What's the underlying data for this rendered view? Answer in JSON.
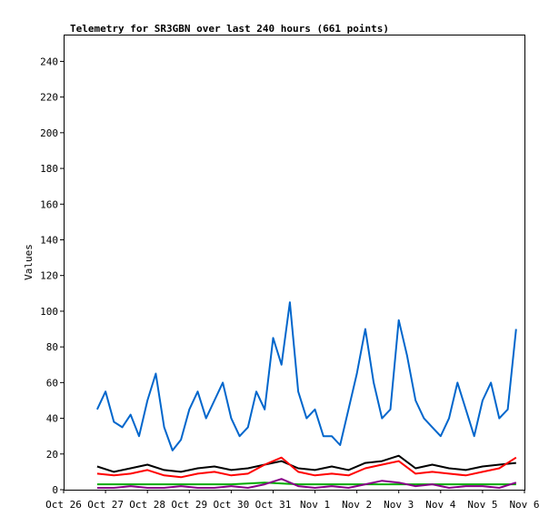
{
  "chart_data": {
    "type": "line",
    "title": "Telemetry for SR3GBN over last 240 hours (661 points)",
    "xlabel": "",
    "ylabel": "Values",
    "xlim": [
      "Oct 26",
      "Nov 6"
    ],
    "ylim": [
      0,
      255
    ],
    "grid": false,
    "legend": "none",
    "x_ticks": [
      "Oct 26",
      "Oct 27",
      "Oct 28",
      "Oct 29",
      "Oct 30",
      "Oct 31",
      "Nov 1",
      "Nov 2",
      "Nov 3",
      "Nov 4",
      "Nov 5",
      "Nov 6"
    ],
    "y_ticks": [
      0,
      20,
      40,
      60,
      80,
      100,
      120,
      140,
      160,
      180,
      200,
      220,
      240
    ],
    "series": [
      {
        "color": "#0066cc",
        "x_days": [
          0.8,
          1.0,
          1.2,
          1.4,
          1.6,
          1.8,
          2.0,
          2.2,
          2.4,
          2.6,
          2.8,
          3.0,
          3.2,
          3.4,
          3.6,
          3.8,
          4.0,
          4.2,
          4.4,
          4.6,
          4.8,
          5.0,
          5.2,
          5.4,
          5.6,
          5.8,
          6.0,
          6.2,
          6.4,
          6.6,
          6.8,
          7.0,
          7.2,
          7.4,
          7.6,
          7.8,
          8.0,
          8.2,
          8.4,
          8.6,
          8.8,
          9.0,
          9.2,
          9.4,
          9.6,
          9.8,
          10.0,
          10.2,
          10.4,
          10.6,
          10.8
        ],
        "values": [
          45,
          55,
          38,
          35,
          42,
          30,
          50,
          65,
          35,
          22,
          28,
          45,
          55,
          40,
          50,
          60,
          40,
          30,
          35,
          55,
          45,
          85,
          70,
          105,
          55,
          40,
          45,
          30,
          30,
          25,
          45,
          65,
          90,
          60,
          40,
          45,
          95,
          75,
          50,
          40,
          35,
          30,
          40,
          60,
          45,
          30,
          50,
          60,
          40,
          45,
          90
        ]
      },
      {
        "color": "#000000",
        "x_days": [
          0.8,
          1.2,
          1.6,
          2.0,
          2.4,
          2.8,
          3.2,
          3.6,
          4.0,
          4.4,
          4.8,
          5.2,
          5.6,
          6.0,
          6.4,
          6.8,
          7.2,
          7.6,
          8.0,
          8.4,
          8.8,
          9.2,
          9.6,
          10.0,
          10.4,
          10.8
        ],
        "values": [
          13,
          10,
          12,
          14,
          11,
          10,
          12,
          13,
          11,
          12,
          14,
          16,
          12,
          11,
          13,
          11,
          15,
          16,
          19,
          12,
          14,
          12,
          11,
          13,
          14,
          15
        ]
      },
      {
        "color": "#ff0000",
        "x_days": [
          0.8,
          1.2,
          1.6,
          2.0,
          2.4,
          2.8,
          3.2,
          3.6,
          4.0,
          4.4,
          4.8,
          5.2,
          5.6,
          6.0,
          6.4,
          6.8,
          7.2,
          7.6,
          8.0,
          8.4,
          8.8,
          9.2,
          9.6,
          10.0,
          10.4,
          10.8
        ],
        "values": [
          9,
          8,
          9,
          11,
          8,
          7,
          9,
          10,
          8,
          9,
          14,
          18,
          10,
          8,
          9,
          8,
          12,
          14,
          16,
          9,
          10,
          9,
          8,
          10,
          12,
          18
        ]
      },
      {
        "color": "#00aa00",
        "x_days": [
          0.8,
          1.6,
          2.4,
          3.2,
          4.0,
          4.8,
          5.6,
          6.4,
          7.2,
          8.0,
          8.8,
          9.6,
          10.4,
          10.8
        ],
        "values": [
          3,
          3,
          3,
          3,
          3,
          4,
          3,
          3,
          3,
          3,
          3,
          3,
          3,
          3
        ]
      },
      {
        "color": "#880088",
        "x_days": [
          0.8,
          1.2,
          1.6,
          2.0,
          2.4,
          2.8,
          3.2,
          3.6,
          4.0,
          4.4,
          4.8,
          5.2,
          5.6,
          6.0,
          6.4,
          6.8,
          7.2,
          7.6,
          8.0,
          8.4,
          8.8,
          9.2,
          9.6,
          10.0,
          10.4,
          10.8
        ],
        "values": [
          1,
          1,
          2,
          1,
          1,
          2,
          1,
          1,
          2,
          1,
          3,
          6,
          2,
          1,
          2,
          1,
          3,
          5,
          4,
          2,
          3,
          1,
          2,
          2,
          1,
          4
        ]
      }
    ]
  }
}
